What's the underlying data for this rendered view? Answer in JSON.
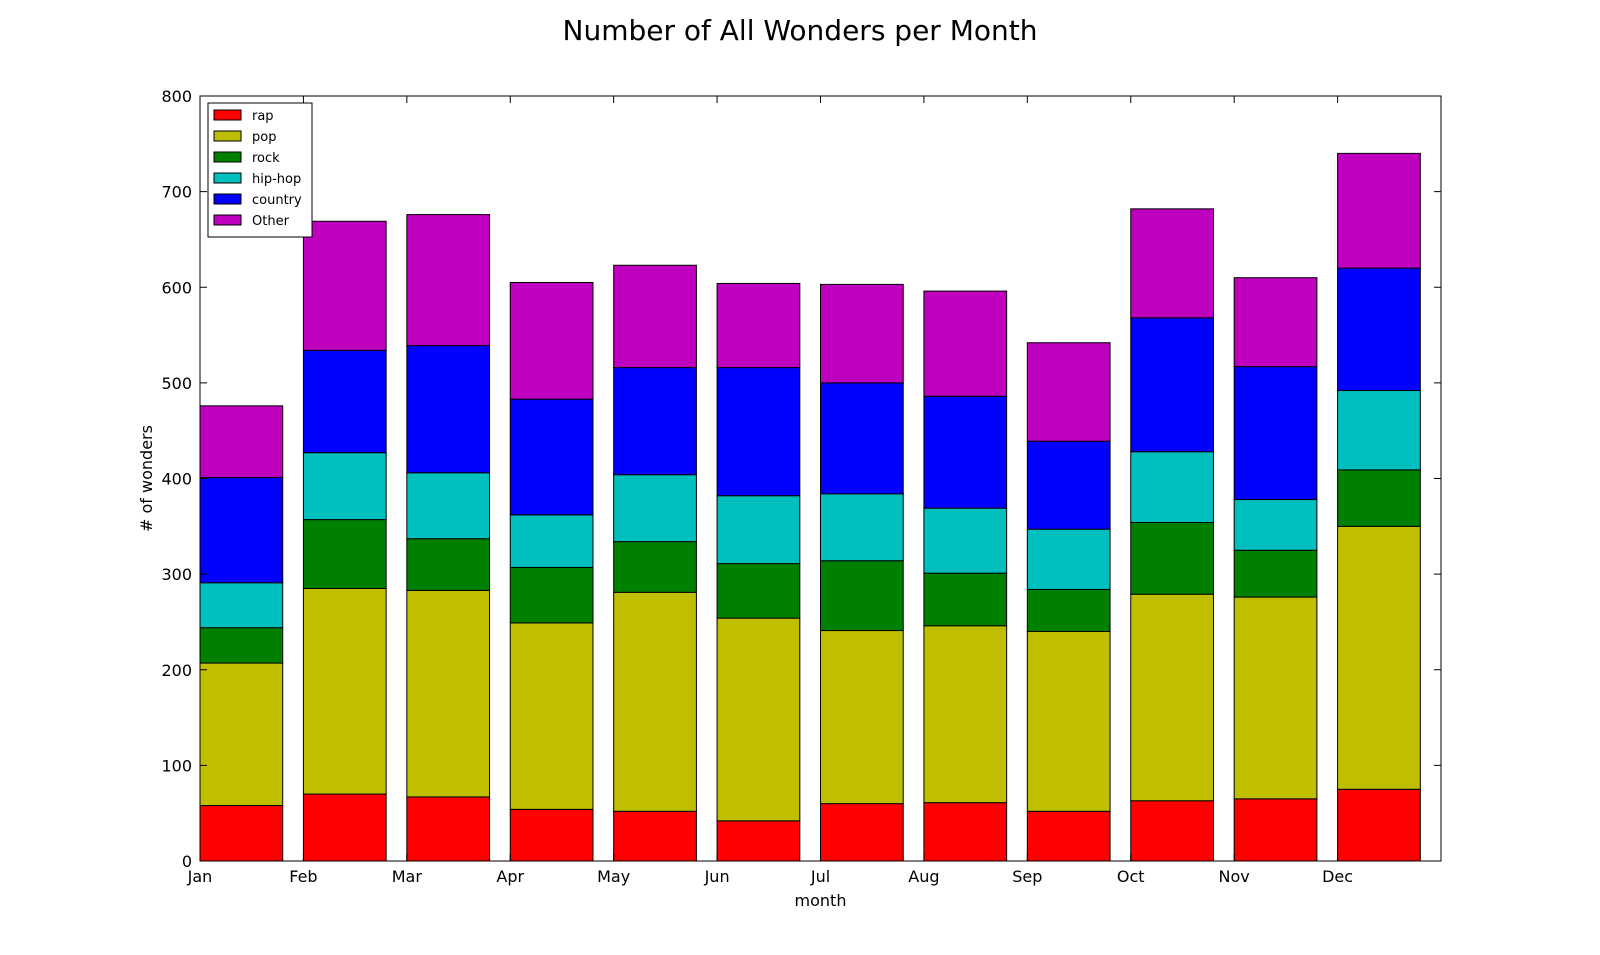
{
  "chart_data": {
    "type": "bar",
    "stacked": true,
    "title": "Number of All Wonders per Month",
    "xlabel": "month",
    "ylabel": "# of wonders",
    "ylim": [
      0,
      800
    ],
    "yticks": [
      0,
      100,
      200,
      300,
      400,
      500,
      600,
      700,
      800
    ],
    "categories": [
      "Jan",
      "Feb",
      "Mar",
      "Apr",
      "May",
      "Jun",
      "Jul",
      "Aug",
      "Sep",
      "Oct",
      "Nov",
      "Dec"
    ],
    "grid": false,
    "legend_position": "top-left",
    "series": [
      {
        "name": "rap",
        "color": "#ff0000",
        "values": [
          58,
          70,
          67,
          54,
          52,
          42,
          60,
          61,
          52,
          63,
          65,
          75
        ]
      },
      {
        "name": "pop",
        "color": "#bfbf00",
        "values": [
          149,
          215,
          216,
          195,
          229,
          212,
          181,
          185,
          188,
          216,
          211,
          275
        ]
      },
      {
        "name": "rock",
        "color": "#008000",
        "values": [
          37,
          72,
          54,
          58,
          53,
          57,
          73,
          55,
          44,
          75,
          49,
          59
        ]
      },
      {
        "name": "hip-hop",
        "color": "#00bfbf",
        "values": [
          47,
          70,
          69,
          55,
          70,
          71,
          70,
          68,
          63,
          74,
          53,
          83
        ]
      },
      {
        "name": "country",
        "color": "#0000ff",
        "values": [
          110,
          107,
          133,
          121,
          112,
          134,
          116,
          117,
          92,
          140,
          139,
          128
        ]
      },
      {
        "name": "Other",
        "color": "#bf00bf",
        "values": [
          75,
          135,
          137,
          122,
          107,
          88,
          103,
          110,
          103,
          114,
          93,
          120
        ]
      }
    ]
  }
}
